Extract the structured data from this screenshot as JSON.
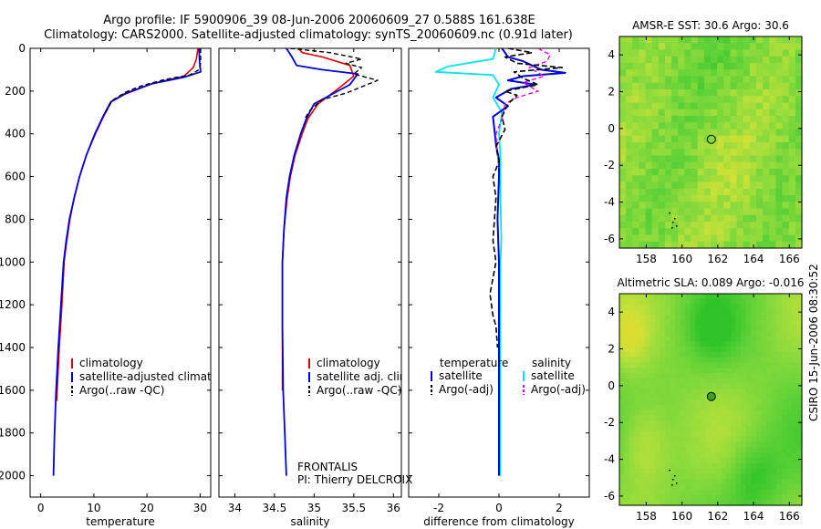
{
  "title_line1": "Argo profile: IF 5900906_39 08-Jun-2006 20060609_27 0.588S 161.638E",
  "title_line2": "Climatology: CARS2000. Satellite-adjusted climatology: synTS_20060609.nc (0.91d later)",
  "side_label": "CSIRO 15-Jun-2006 08:30:52",
  "frontalis_line1": "FRONTALIS",
  "frontalis_line2": "PI: Thierry DELCROIX",
  "colors": {
    "climatology": "#dd0000",
    "satellite": "#0000dd",
    "argo": "#000000",
    "sat_salinity": "#00e5ee",
    "argo_salinity": "#ee00ee"
  },
  "chart_data": [
    {
      "type": "line",
      "xlabel": "temperature",
      "xlim": [
        -2,
        32
      ],
      "ylim": [
        2100,
        0
      ],
      "xticks": [
        0,
        10,
        20,
        30
      ],
      "yticks": [
        0,
        200,
        400,
        600,
        800,
        1000,
        1200,
        1400,
        1600,
        1800,
        2000
      ],
      "legend": [
        "climatology",
        "satellite-adjusted climatology",
        "Argo(..raw -QC)"
      ],
      "series": [
        {
          "name": "climatology",
          "color": "#dd0000",
          "dash": "",
          "width": 1.6,
          "points": [
            [
              29.6,
              0
            ],
            [
              29.3,
              50
            ],
            [
              28.7,
              90
            ],
            [
              27,
              130
            ],
            [
              21,
              165
            ],
            [
              15.8,
              215
            ],
            [
              13.3,
              250
            ],
            [
              11.8,
              320
            ],
            [
              10.3,
              400
            ],
            [
              8.6,
              500
            ],
            [
              7.3,
              600
            ],
            [
              6.3,
              700
            ],
            [
              5.5,
              800
            ],
            [
              4.9,
              900
            ],
            [
              4.4,
              1000
            ],
            [
              4,
              1200
            ],
            [
              3.5,
              1400
            ],
            [
              3,
              1650
            ]
          ]
        },
        {
          "name": "satellite-adjusted climatology",
          "color": "#0000dd",
          "dash": "",
          "width": 1.8,
          "points": [
            [
              29.8,
              0
            ],
            [
              29.9,
              60
            ],
            [
              30.1,
              110
            ],
            [
              27,
              135
            ],
            [
              21,
              165
            ],
            [
              16,
              210
            ],
            [
              13.2,
              250
            ],
            [
              11.7,
              320
            ],
            [
              10.2,
              400
            ],
            [
              8.6,
              500
            ],
            [
              7.3,
              600
            ],
            [
              6.3,
              700
            ],
            [
              5.4,
              800
            ],
            [
              4.8,
              900
            ],
            [
              4.3,
              1000
            ],
            [
              3.8,
              1200
            ],
            [
              3.3,
              1400
            ],
            [
              2.9,
              1600
            ],
            [
              2.6,
              1800
            ],
            [
              2.4,
              2000
            ]
          ]
        },
        {
          "name": "Argo(..raw -QC)",
          "color": "#000000",
          "dash": "5,3",
          "width": 1.4,
          "points": [
            [
              30.1,
              0
            ],
            [
              30.1,
              70
            ],
            [
              29.8,
              100
            ],
            [
              28,
              125
            ],
            [
              23.5,
              145
            ],
            [
              19,
              175
            ],
            [
              16,
              205
            ],
            [
              13.4,
              245
            ],
            [
              12,
              310
            ]
          ]
        }
      ]
    },
    {
      "type": "line",
      "xlabel": "salinity",
      "xlim": [
        33.8,
        36.1
      ],
      "ylim": [
        2100,
        0
      ],
      "xticks": [
        34,
        34.5,
        35,
        35.5,
        36
      ],
      "yticks": [
        0,
        200,
        400,
        600,
        800,
        1000,
        1200,
        1400,
        1600,
        1800,
        2000
      ],
      "legend": [
        "climatology",
        "satellite adj. clim.",
        "Argo(..raw -QC)"
      ],
      "series": [
        {
          "name": "climatology",
          "color": "#dd0000",
          "dash": "",
          "width": 1.6,
          "points": [
            [
              34.8,
              0
            ],
            [
              34.85,
              20
            ],
            [
              35.1,
              40
            ],
            [
              35.45,
              80
            ],
            [
              35.5,
              130
            ],
            [
              35.3,
              190
            ],
            [
              35.05,
              260
            ],
            [
              34.92,
              330
            ],
            [
              34.85,
              400
            ],
            [
              34.76,
              500
            ],
            [
              34.7,
              600
            ],
            [
              34.66,
              700
            ],
            [
              34.62,
              850
            ],
            [
              34.6,
              1000
            ],
            [
              34.6,
              1300
            ],
            [
              34.6,
              1600
            ]
          ]
        },
        {
          "name": "satellite adj. clim.",
          "color": "#0000dd",
          "dash": "",
          "width": 1.8,
          "points": [
            [
              34.65,
              0
            ],
            [
              34.72,
              40
            ],
            [
              34.78,
              80
            ],
            [
              35.1,
              100
            ],
            [
              35.55,
              120
            ],
            [
              35.45,
              170
            ],
            [
              35.2,
              220
            ],
            [
              35,
              260
            ],
            [
              34.9,
              330
            ],
            [
              34.83,
              400
            ],
            [
              34.75,
              500
            ],
            [
              34.69,
              600
            ],
            [
              34.65,
              700
            ],
            [
              34.62,
              850
            ],
            [
              34.6,
              1000
            ],
            [
              34.6,
              1300
            ],
            [
              34.61,
              1600
            ],
            [
              34.63,
              1800
            ],
            [
              34.65,
              2000
            ]
          ]
        },
        {
          "name": "Argo(..raw -QC)",
          "color": "#000000",
          "dash": "5,3",
          "width": 1.4,
          "points": [
            [
              34.7,
              0
            ],
            [
              35.2,
              20
            ],
            [
              35.6,
              50
            ],
            [
              35.4,
              70
            ],
            [
              35.6,
              90
            ],
            [
              35.5,
              120
            ],
            [
              35.8,
              150
            ],
            [
              35.6,
              180
            ],
            [
              35.4,
              210
            ],
            [
              35.1,
              240
            ],
            [
              34.95,
              290
            ],
            [
              34.88,
              330
            ]
          ]
        }
      ]
    },
    {
      "type": "line",
      "xlabel": "difference from climatology",
      "xlim": [
        -3,
        3
      ],
      "ylim": [
        2100,
        0
      ],
      "xticks": [
        -2,
        0,
        2
      ],
      "yticks": [
        0,
        200,
        400,
        600,
        800,
        1000,
        1200,
        1400,
        1600,
        1800,
        2000
      ],
      "legend_left_title": "temperature",
      "legend_right_title": "salinity",
      "legend_left": [
        "satellite",
        "Argo(-adj)"
      ],
      "legend_right": [
        "satellite",
        "Argo(-adj)"
      ],
      "series": [
        {
          "name": "satellite",
          "color": "#00e5ee",
          "dash": "",
          "width": 1.8,
          "points": [
            [
              -0.1,
              0
            ],
            [
              -0.2,
              50
            ],
            [
              -1.7,
              85
            ],
            [
              -2.1,
              110
            ],
            [
              -0.2,
              125
            ],
            [
              0,
              170
            ],
            [
              -0.2,
              230
            ],
            [
              0.1,
              300
            ],
            [
              0,
              400
            ],
            [
              0.05,
              500
            ],
            [
              0.05,
              700
            ],
            [
              0.08,
              900
            ],
            [
              0.05,
              1000
            ],
            [
              0.05,
              1200
            ],
            [
              0.04,
              1400
            ],
            [
              0.04,
              1600
            ],
            [
              0.04,
              1800
            ],
            [
              0.04,
              2000
            ]
          ]
        },
        {
          "name": "satellite",
          "color": "#0000dd",
          "dash": "",
          "width": 2.0,
          "points": [
            [
              0.1,
              0
            ],
            [
              0.3,
              40
            ],
            [
              0.8,
              60
            ],
            [
              1.4,
              100
            ],
            [
              2.2,
              115
            ],
            [
              0.8,
              130
            ],
            [
              0.3,
              150
            ],
            [
              1.2,
              170
            ],
            [
              0.4,
              190
            ],
            [
              -0.1,
              230
            ],
            [
              0.3,
              270
            ],
            [
              -0.2,
              320
            ],
            [
              -0.15,
              380
            ],
            [
              -0.1,
              450
            ],
            [
              0,
              520
            ],
            [
              0,
              600
            ],
            [
              -0.05,
              800
            ],
            [
              0,
              1000
            ],
            [
              0,
              1300
            ],
            [
              0,
              1600
            ],
            [
              0,
              1850
            ],
            [
              0,
              2000
            ]
          ]
        },
        {
          "name": "Argo(-adj)",
          "color": "#ee00ee",
          "dash": "5,3",
          "width": 1.4,
          "points": [
            [
              1.3,
              0
            ],
            [
              1.7,
              30
            ],
            [
              1.6,
              60
            ],
            [
              1,
              90
            ],
            [
              1.5,
              130
            ],
            [
              0.8,
              160
            ],
            [
              1.3,
              200
            ],
            [
              0.6,
              230
            ],
            [
              0.2,
              260
            ],
            [
              0.1,
              330
            ],
            [
              -0.1,
              400
            ],
            [
              -0.05,
              500
            ],
            [
              0,
              560
            ]
          ]
        },
        {
          "name": "Argo(-adj)",
          "color": "#000000",
          "dash": "6,3",
          "width": 1.6,
          "points": [
            [
              0.3,
              0
            ],
            [
              1.1,
              20
            ],
            [
              0.2,
              40
            ],
            [
              0.6,
              70
            ],
            [
              2.1,
              90
            ],
            [
              0.5,
              110
            ],
            [
              0.8,
              140
            ],
            [
              1.3,
              170
            ],
            [
              0.2,
              200
            ],
            [
              0.6,
              220
            ],
            [
              0.3,
              260
            ],
            [
              0.1,
              320
            ],
            [
              0.2,
              380
            ],
            [
              -0.1,
              460
            ],
            [
              0,
              530
            ],
            [
              -0.2,
              600
            ],
            [
              -0.1,
              700
            ],
            [
              -0.2,
              900
            ],
            [
              -0.1,
              1000
            ],
            [
              -0.3,
              1150
            ],
            [
              -0.2,
              1250
            ],
            [
              -0.1,
              1300
            ],
            [
              -0.05,
              1400
            ]
          ]
        }
      ]
    },
    {
      "type": "heatmap",
      "title": "AMSR-E SST: 30.6 Argo: 30.6",
      "xlim": [
        156.5,
        166.7
      ],
      "ylim": [
        -6.5,
        5
      ],
      "xticks": [
        158,
        160,
        162,
        164,
        166
      ],
      "yticks": [
        -6,
        -4,
        -2,
        0,
        2,
        4
      ],
      "marker": [
        161.64,
        -0.59
      ],
      "base_color": "#84d33f"
    },
    {
      "type": "heatmap",
      "title": "Altimetric SLA: 0.089 Argo: -0.016",
      "xlim": [
        156.5,
        166.7
      ],
      "ylim": [
        -6.5,
        5
      ],
      "xticks": [
        158,
        160,
        162,
        164,
        166
      ],
      "yticks": [
        -6,
        -4,
        -2,
        0,
        2,
        4
      ],
      "marker": [
        161.64,
        -0.59
      ],
      "base_color": "#8ad43a"
    }
  ]
}
